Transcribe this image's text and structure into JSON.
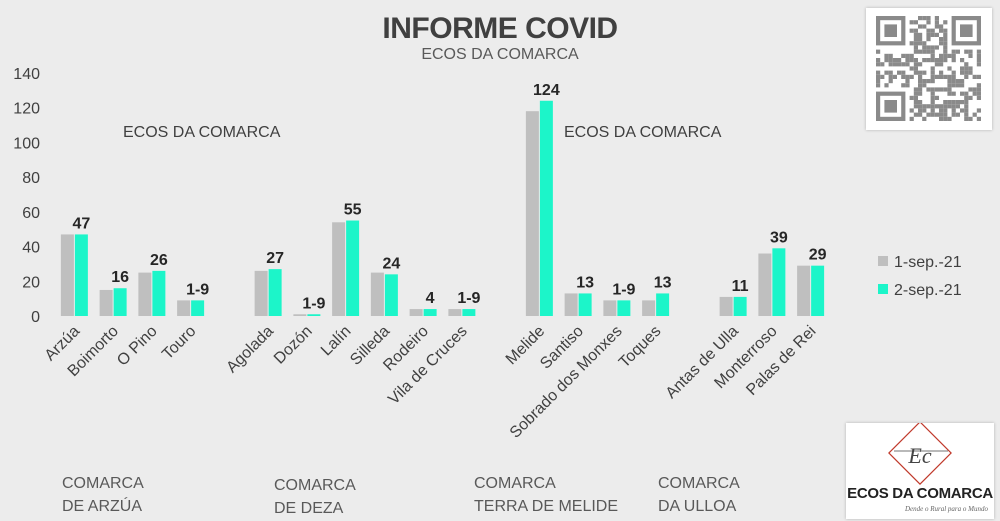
{
  "title": "INFORME COVID",
  "subtitle": "ECOS DA COMARCA",
  "watermarks": [
    "ECOS DA COMARCA",
    "ECOS DA COMARCA"
  ],
  "logo": {
    "name": "ECOS DA COMARCA",
    "tagline": "Dende o Rural para o Mundo",
    "mark": "Ec"
  },
  "regions": [
    {
      "line1": "COMARCA",
      "line2": "DE ARZÚA"
    },
    {
      "line1": "COMARCA",
      "line2": "DE DEZA"
    },
    {
      "line1": "COMARCA",
      "line2": "TERRA DE MELIDE"
    },
    {
      "line1": "COMARCA",
      "line2": "DA ULLOA"
    }
  ],
  "colors": {
    "series1": "#bfbfbf",
    "series2": "#1cf5c9",
    "axis_text": "#404040",
    "background": "#ececec"
  },
  "chart_data": {
    "type": "bar",
    "title": "INFORME COVID",
    "subtitle": "ECOS DA COMARCA",
    "categories": [
      "Arzúa",
      "Boimorto",
      "O Pino",
      "Touro",
      "",
      "Agolada",
      "Dozón",
      "Lalín",
      "Silleda",
      "Rodeiro",
      "Vila de Cruces",
      "",
      "Melide",
      "Santiso",
      "Sobrado dos Monxes",
      "Toques",
      "",
      "Antas de Ulla",
      "Monterroso",
      "Palas de Rei"
    ],
    "series": [
      {
        "name": "1-sep.-21",
        "values": [
          47,
          15,
          25,
          9,
          null,
          26,
          1,
          54,
          25,
          4,
          4,
          null,
          118,
          13,
          9,
          9,
          null,
          11,
          36,
          29
        ]
      },
      {
        "name": "2-sep.-21",
        "values": [
          47,
          16,
          26,
          9,
          null,
          27,
          1,
          55,
          24,
          4,
          4,
          null,
          124,
          13,
          9,
          13,
          null,
          11,
          39,
          29
        ]
      }
    ],
    "data_labels": [
      "47",
      "16",
      "26",
      "1-9",
      "",
      "27",
      "1-9",
      "55",
      "24",
      "4",
      "1-9",
      "",
      "124",
      "13",
      "1-9",
      "13",
      "",
      "11",
      "39",
      "29"
    ],
    "ylim": [
      0,
      140
    ],
    "yticks": [
      0,
      20,
      40,
      60,
      80,
      100,
      120,
      140
    ],
    "grid": false,
    "legend": "right"
  }
}
